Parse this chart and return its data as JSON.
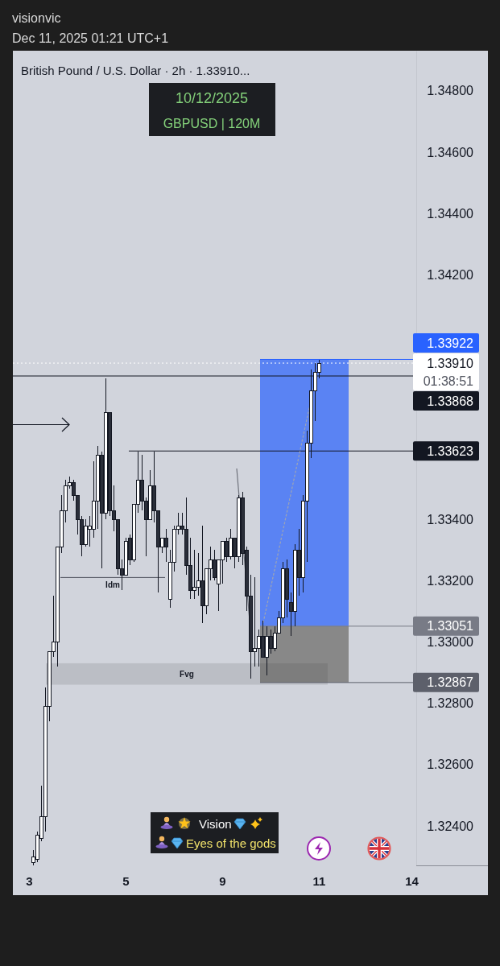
{
  "chart_data": {
    "type": "candlestick",
    "title": "British Pound / U.S. Dollar · 2h · 1.33910...",
    "categories": [
      "3",
      null,
      null,
      null,
      null,
      null,
      null,
      null,
      null,
      null,
      null,
      null,
      null,
      null,
      null,
      null,
      null,
      null,
      null,
      null,
      null,
      null,
      null,
      null,
      "5",
      null,
      null,
      null,
      null,
      null,
      null,
      null,
      null,
      null,
      null,
      null,
      null,
      null,
      null,
      null,
      null,
      null,
      null,
      null,
      null,
      null,
      null,
      null,
      "9",
      null,
      null,
      null,
      null,
      null,
      null,
      null,
      null,
      null,
      null,
      null,
      null,
      null,
      null,
      null,
      null,
      null,
      null,
      null,
      null,
      null,
      null,
      null,
      "11",
      null,
      null,
      null,
      null,
      null,
      null,
      null,
      null,
      null,
      null,
      null,
      null,
      null,
      null,
      null,
      null,
      null,
      null,
      null,
      null,
      null,
      null,
      "14",
      null
    ],
    "ohlc": [
      null,
      [
        1.3228,
        1.3232,
        1.3227,
        1.323
      ],
      [
        1.3229,
        1.3238,
        1.3228,
        1.3237
      ],
      [
        1.3236,
        1.3253,
        1.3235,
        1.3243
      ],
      [
        1.3243,
        1.3285,
        1.3238,
        1.3279
      ],
      [
        1.3279,
        1.3297,
        1.3274,
        1.3297
      ],
      [
        1.3297,
        1.3315,
        1.3295,
        1.33
      ],
      [
        1.33,
        1.3331,
        1.3292,
        1.3331
      ],
      [
        1.3331,
        1.3348,
        1.3329,
        1.3343
      ],
      [
        1.3343,
        1.3353,
        1.3339,
        1.3351
      ],
      [
        1.3351,
        1.3354,
        1.335,
        1.3352
      ],
      [
        1.3352,
        1.3353,
        1.3346,
        1.3348
      ],
      [
        1.3348,
        1.3348,
        1.3335,
        1.334
      ],
      [
        1.334,
        1.3341,
        1.3328,
        1.3332
      ],
      [
        1.3332,
        1.334,
        1.3331,
        1.3338
      ],
      [
        1.3337,
        1.3341,
        1.3331,
        1.3338
      ],
      [
        1.3337,
        1.3359,
        1.3334,
        1.3346
      ],
      [
        1.3346,
        1.3364,
        1.3337,
        1.3361
      ],
      [
        1.3361,
        1.3362,
        1.3324,
        1.3342
      ],
      [
        1.3342,
        1.3386,
        1.334,
        1.3375
      ],
      [
        1.3375,
        1.3375,
        1.3341,
        1.3343
      ],
      [
        1.3343,
        1.3351,
        1.3336,
        1.334
      ],
      [
        1.334,
        1.334,
        1.3322,
        1.3324
      ],
      [
        1.3324,
        1.3327,
        1.3317,
        1.3322
      ],
      [
        1.3322,
        1.3334,
        1.3322,
        1.3333
      ],
      [
        1.3334,
        1.3335,
        1.3325,
        1.3327
      ],
      [
        1.3327,
        1.3345,
        1.3326,
        1.3345
      ],
      [
        1.3345,
        1.3362,
        1.3342,
        1.3353
      ],
      [
        1.3353,
        1.3361,
        1.3343,
        1.3346
      ],
      [
        1.3346,
        1.3347,
        1.3328,
        1.334
      ],
      [
        1.334,
        1.3356,
        1.334,
        1.3351
      ],
      [
        1.3351,
        1.3362,
        1.3339,
        1.3343
      ],
      [
        1.3343,
        1.3343,
        1.3316,
        1.3331
      ],
      [
        1.3331,
        1.3334,
        1.3329,
        1.3334
      ],
      [
        1.3334,
        1.3337,
        1.3326,
        1.3331
      ],
      [
        1.3314,
        1.333,
        1.3311,
        1.3326
      ],
      [
        1.3326,
        1.3338,
        1.3323,
        1.3337
      ],
      [
        1.3337,
        1.3342,
        1.3335,
        1.3338
      ],
      [
        1.3338,
        1.3342,
        1.3335,
        1.3337
      ],
      [
        1.3337,
        1.3347,
        1.3322,
        1.3325
      ],
      [
        1.3325,
        1.3334,
        1.3314,
        1.3317
      ],
      [
        1.3317,
        1.333,
        1.3314,
        1.3318
      ],
      [
        1.3318,
        1.3329,
        1.3315,
        1.332
      ],
      [
        1.332,
        1.3338,
        1.3306,
        1.3312
      ],
      [
        1.3312,
        1.3324,
        1.3309,
        1.3324
      ],
      [
        1.3324,
        1.3331,
        1.332,
        1.3327
      ],
      [
        1.3327,
        1.333,
        1.332,
        1.3321
      ],
      [
        1.3319,
        1.3327,
        1.331,
        1.3327
      ],
      [
        1.3327,
        1.3333,
        1.3319,
        1.3333
      ],
      [
        1.3333,
        1.3334,
        1.3326,
        1.3328
      ],
      [
        1.3328,
        1.3337,
        1.3327,
        1.3334
      ],
      [
        1.3334,
        1.3334,
        1.3324,
        1.3328
      ],
      [
        1.3328,
        1.3348,
        1.3326,
        1.3347
      ],
      [
        1.3347,
        1.3349,
        1.3325,
        1.3329
      ],
      [
        1.333,
        1.3331,
        1.331,
        1.3315
      ],
      [
        1.3315,
        1.3322,
        1.3288,
        1.3297
      ],
      [
        1.3297,
        1.3321,
        1.3292,
        1.3298
      ],
      [
        1.3298,
        1.3304,
        1.3292,
        1.3302
      ],
      [
        1.3302,
        1.3307,
        1.3295,
        1.3295
      ],
      [
        1.3295,
        1.3305,
        1.3289,
        1.3302
      ],
      [
        1.3302,
        1.3304,
        1.3296,
        1.3298
      ],
      [
        1.3298,
        1.3305,
        1.3297,
        1.3303
      ],
      [
        1.3303,
        1.331,
        1.3303,
        1.3308
      ],
      [
        1.3308,
        1.3326,
        1.3306,
        1.3324
      ],
      [
        1.3324,
        1.3327,
        1.3308,
        1.3314
      ],
      [
        1.3313,
        1.3316,
        1.3302,
        1.331
      ],
      [
        1.331,
        1.3332,
        1.3305,
        1.333
      ],
      [
        1.333,
        1.3337,
        1.3315,
        1.3321
      ],
      [
        1.3321,
        1.3348,
        1.3316,
        1.3346
      ],
      [
        1.3346,
        1.3369,
        1.3326,
        1.3365
      ],
      [
        1.3365,
        1.3389,
        1.336,
        1.3382
      ],
      [
        1.3382,
        1.3391,
        1.3372,
        1.3388
      ],
      [
        1.3388,
        1.3392,
        1.3386,
        1.3391
      ],
      null,
      null,
      null,
      null,
      null,
      null,
      null,
      null,
      null,
      null,
      null,
      null,
      null,
      null,
      null,
      null,
      null,
      null,
      null,
      null,
      null,
      null,
      null,
      null
    ],
    "series": [
      {
        "type": "line",
        "color": "#9aa3b8",
        "line_style": "dotted",
        "values": [
          null,
          null,
          null,
          null,
          null,
          null,
          null,
          null,
          null,
          null,
          null,
          null,
          null,
          null,
          null,
          null,
          null,
          null,
          null,
          null,
          null,
          null,
          null,
          null,
          null,
          null,
          null,
          null,
          null,
          null,
          null,
          null,
          null,
          null,
          null,
          null,
          null,
          null,
          null,
          null,
          null,
          null,
          null,
          null,
          null,
          null,
          null,
          null,
          null,
          null,
          null,
          null,
          null,
          null,
          null,
          null,
          null,
          null,
          1.33051,
          null,
          null,
          null,
          null,
          null,
          null,
          null,
          null,
          null,
          null,
          null,
          null,
          null,
          1.3391,
          null,
          null,
          null,
          null,
          null,
          null,
          null,
          null,
          null,
          null,
          null,
          null,
          null,
          null,
          null,
          null,
          null,
          null,
          null,
          null,
          null,
          null,
          null,
          null
        ]
      }
    ],
    "ylim": [
      1.3227,
      1.3493
    ],
    "yticks": [
      {
        "value": 1.324,
        "label": "1.32400"
      },
      {
        "value": 1.326,
        "label": "1.32600"
      },
      {
        "value": 1.328,
        "label": "1.32800"
      },
      {
        "value": 1.33,
        "label": "1.33000"
      },
      {
        "value": 1.332,
        "label": "1.33200"
      },
      {
        "value": 1.334,
        "label": "1.33400"
      },
      {
        "value": 1.342,
        "label": "1.34200"
      },
      {
        "value": 1.344,
        "label": "1.34400"
      },
      {
        "value": 1.346,
        "label": "1.34600"
      },
      {
        "value": 1.348,
        "label": "1.34800"
      }
    ],
    "ref_lines": [
      {
        "axis": "y",
        "value": 1.3391,
        "label": "1.33910",
        "color": "#ffffff",
        "line_style": "dotted"
      },
      {
        "axis": "y",
        "value": 1.33868,
        "label": "1.33868",
        "color": "#131722"
      },
      {
        "axis": "y",
        "value": 1.33623,
        "label": "1.33623",
        "color": "#131722"
      },
      {
        "axis": "y",
        "value": 1.3321,
        "label": "Idm",
        "color": "#4a4e59"
      },
      {
        "axis": "y",
        "value": 1.33922,
        "label": "1.33922",
        "color": "#2962ff"
      },
      {
        "axis": "y",
        "value": 1.33051,
        "label": "1.33051",
        "color": "#787b86"
      },
      {
        "axis": "y",
        "value": 1.32867,
        "label": "1.32867",
        "color": "#5d606b"
      }
    ],
    "bands": [
      {
        "axis": "y",
        "from": 1.33051,
        "to": 1.33922,
        "color": "#5a83f3"
      },
      {
        "axis": "y",
        "from": 1.32867,
        "to": 1.33051,
        "color": "#888888"
      },
      {
        "axis": "y",
        "from": 1.3286,
        "to": 1.3293,
        "label": "Fvg",
        "color": "#bcbec5"
      }
    ],
    "annotations": [
      "visionvic",
      "Dec 11, 2025 01:21 UTC+1",
      "10/12/2025",
      "GBPUSD | 120M",
      "Vision",
      "Eyes of the gods",
      "01:38:51"
    ]
  }
}
